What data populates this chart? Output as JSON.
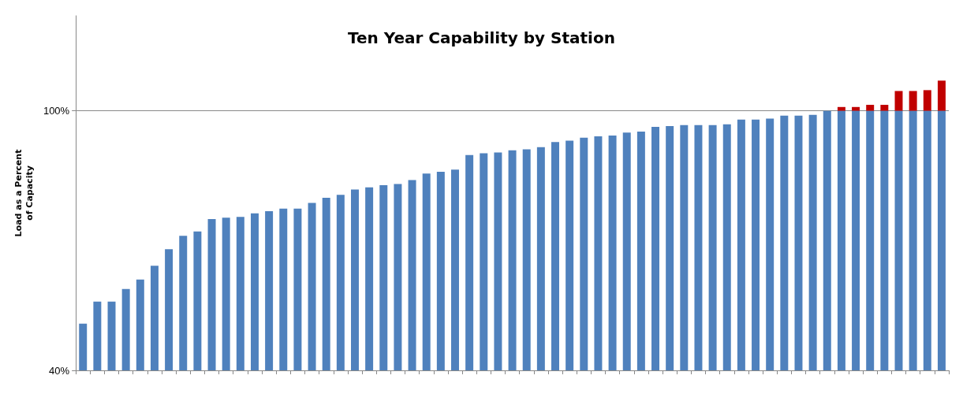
{
  "chart_data": {
    "type": "bar",
    "title": "Ten Year Capability by Station",
    "ylabel": "Load as a Percent of Capacity",
    "categories": [
      null,
      null,
      null,
      null,
      null,
      null,
      null,
      null,
      null,
      null,
      null,
      null,
      null,
      null,
      null,
      null,
      null,
      null,
      null,
      null,
      null,
      null,
      null,
      null,
      null,
      null,
      null,
      null,
      null,
      null,
      null,
      null,
      null,
      null,
      null,
      null,
      null,
      null,
      null,
      null,
      null,
      null,
      null,
      null,
      null,
      null,
      null,
      null,
      null,
      null,
      null,
      null,
      null,
      null,
      null,
      null,
      null,
      null,
      null,
      null,
      null
    ],
    "series": [
      {
        "color": "#4f81bd",
        "values": [
          50.8,
          55.9,
          55.9,
          58.8,
          61.0,
          64.2,
          68.0,
          71.1,
          72.1,
          75.0,
          75.3,
          75.5,
          76.3,
          76.8,
          77.4,
          77.4,
          78.7,
          79.9,
          80.6,
          81.8,
          82.3,
          82.8,
          83.1,
          84.0,
          85.5,
          85.9,
          86.4,
          89.8,
          90.2,
          90.4,
          90.9,
          91.1,
          91.6,
          92.8,
          93.1,
          93.8,
          94.1,
          94.3,
          95.0,
          95.2,
          96.3,
          96.5,
          96.7,
          96.7,
          96.7,
          96.9,
          98.0,
          98.0,
          98.2,
          98.9,
          98.9,
          99.1,
          100,
          100,
          100,
          100,
          100,
          100,
          100,
          100,
          100
        ]
      },
      {
        "color": "#c00000",
        "values": [
          null,
          null,
          null,
          null,
          null,
          null,
          null,
          null,
          null,
          null,
          null,
          null,
          null,
          null,
          null,
          null,
          null,
          null,
          null,
          null,
          null,
          null,
          null,
          null,
          null,
          null,
          null,
          null,
          null,
          null,
          null,
          null,
          null,
          null,
          null,
          null,
          null,
          null,
          null,
          null,
          null,
          null,
          null,
          null,
          null,
          null,
          null,
          null,
          null,
          null,
          null,
          null,
          null,
          0.9,
          0.9,
          1.4,
          1.4,
          4.6,
          4.6,
          4.8,
          7.0
        ],
        "base": [
          null,
          null,
          null,
          null,
          null,
          null,
          null,
          null,
          null,
          null,
          null,
          null,
          null,
          null,
          null,
          null,
          null,
          null,
          null,
          null,
          null,
          null,
          null,
          null,
          null,
          null,
          null,
          null,
          null,
          null,
          null,
          null,
          null,
          null,
          null,
          null,
          null,
          null,
          null,
          null,
          null,
          null,
          null,
          null,
          null,
          null,
          null,
          null,
          null,
          null,
          null,
          null,
          null,
          100,
          100,
          100,
          100,
          100,
          100,
          100,
          100
        ]
      }
    ],
    "ylim": [
      40,
      122
    ],
    "yticks": [
      {
        "value": 40,
        "label": "40%"
      },
      {
        "value": 100,
        "label": "100%"
      }
    ],
    "grid": "y"
  }
}
